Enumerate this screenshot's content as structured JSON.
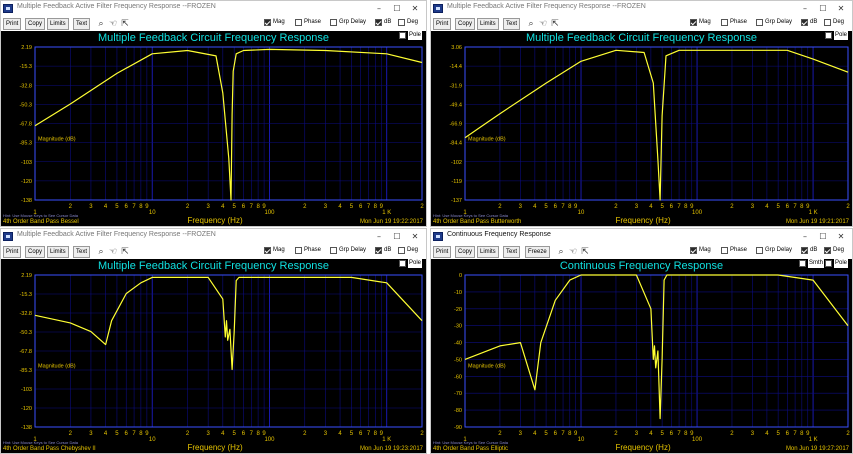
{
  "colors": {
    "accent": "#00e5e5",
    "trace": "#ffff33",
    "grid": "#10108f",
    "frame": "#3a50ff",
    "footer_text": "#e6c400",
    "background": "#000000"
  },
  "windows": [
    {
      "title": "Multiple Feedback Active Filter Frequency Response --FROZEN",
      "plot_title": "Multiple Feedback Circuit Frequency Response",
      "toolbar": [
        "Print",
        "Copy",
        "Limits",
        "Text"
      ],
      "footer_left": "4th Order Band Pass Bessel",
      "footer_right": "Mon Jun 19 19:22:2017",
      "footer_hint": "Hint: Use Mouse Keys to See Cursor Data",
      "y_ticks": [
        "2.19",
        "-15.3",
        "-32.8",
        "-50.3",
        "-67.8",
        "-85.3",
        "-103",
        "-120",
        "-138"
      ],
      "checks": [
        {
          "label": "Mag",
          "on": true
        },
        {
          "label": "Phase",
          "on": false
        },
        {
          "label": "Grp Delay",
          "on": false
        },
        {
          "label": "dB",
          "on": true
        },
        {
          "label": "Deg",
          "on": false
        },
        {
          "label": "Pole",
          "on": false
        }
      ]
    },
    {
      "title": "Multiple Feedback Active Filter Frequency Response --FROZEN",
      "plot_title": "Multiple Feedback Circuit Frequency Response",
      "toolbar": [
        "Print",
        "Copy",
        "Limits",
        "Text"
      ],
      "footer_left": "4th Order Band Pass Butterworth",
      "footer_right": "Mon Jun 19 19:21:2017",
      "footer_hint": "Hint: Use Mouse Keys to See Cursor Data",
      "y_ticks": [
        "3.06",
        "-14.4",
        "-31.9",
        "-49.4",
        "-66.9",
        "-84.4",
        "-102",
        "-119",
        "-137"
      ],
      "checks": [
        {
          "label": "Mag",
          "on": true
        },
        {
          "label": "Phase",
          "on": false
        },
        {
          "label": "Grp Delay",
          "on": false
        },
        {
          "label": "dB",
          "on": true
        },
        {
          "label": "Deg",
          "on": false
        },
        {
          "label": "Pole",
          "on": false
        }
      ]
    },
    {
      "title": "Multiple Feedback Active Filter Frequency Response --FROZEN",
      "plot_title": "Multiple Feedback Circuit Frequency Response",
      "toolbar": [
        "Print",
        "Copy",
        "Limits",
        "Text"
      ],
      "footer_left": "4th Order Band Pass Chebyshev II",
      "footer_right": "Mon Jun 19 19:23:2017",
      "footer_hint": "Hint: Use Mouse Keys to See Cursor Data",
      "y_ticks": [
        "2.19",
        "-15.3",
        "-32.8",
        "-50.3",
        "-67.8",
        "-85.3",
        "-103",
        "-120",
        "-138"
      ],
      "checks": [
        {
          "label": "Mag",
          "on": true
        },
        {
          "label": "Phase",
          "on": false
        },
        {
          "label": "Grp Delay",
          "on": false
        },
        {
          "label": "dB",
          "on": true
        },
        {
          "label": "Deg",
          "on": false
        },
        {
          "label": "Pole",
          "on": false
        }
      ]
    },
    {
      "title": "Continuous Frequency Response",
      "plot_title": "Continuous Frequency Response",
      "toolbar": [
        "Print",
        "Copy",
        "Limits",
        "Text",
        "Freeze"
      ],
      "footer_left": "4th Order Band Pass Elliptic",
      "footer_right": "Mon Jun 19 19:27:2017",
      "footer_hint": "Hint: Use Mouse Keys to See Cursor Data",
      "y_ticks": [
        "0",
        "-10",
        "-20",
        "-30",
        "-40",
        "-50",
        "-60",
        "-70",
        "-80",
        "-90"
      ],
      "checks": [
        {
          "label": "Mag",
          "on": true
        },
        {
          "label": "Phase",
          "on": false
        },
        {
          "label": "Grp Delay",
          "on": false
        },
        {
          "label": "dB",
          "on": true
        },
        {
          "label": "Deg",
          "on": true
        },
        {
          "label": "Smth",
          "on": false
        },
        {
          "label": "Pole",
          "on": false
        }
      ]
    }
  ],
  "common": {
    "xlabel": "Frequency (Hz)",
    "series_label": "Magnitude (dB)",
    "decade_labels": [
      "1",
      "10",
      "100",
      "1 K"
    ],
    "minor_labels": [
      "2",
      "3",
      "4",
      "5",
      "6",
      "7",
      "8",
      "9"
    ]
  },
  "chart_data": [
    {
      "type": "line",
      "title": "Multiple Feedback Circuit Frequency Response",
      "subtitle": "4th Order Band Pass Bessel",
      "xlabel": "Frequency (Hz)",
      "ylabel": "Magnitude (dB)",
      "xscale": "log",
      "xlim": [
        1,
        2000
      ],
      "ylim": [
        -138,
        2.19
      ],
      "grid": true,
      "series": [
        {
          "name": "Magnitude (dB)",
          "x": [
            1,
            2,
            5,
            10,
            20,
            35,
            40,
            45,
            47,
            48,
            49,
            52,
            60,
            100,
            300,
            1000,
            2000
          ],
          "y": [
            -70,
            -50,
            -22,
            -4,
            -1,
            -6,
            -40,
            -100,
            -138,
            -60,
            -20,
            -4,
            -1,
            0,
            -1,
            -4,
            -12
          ]
        }
      ]
    },
    {
      "type": "line",
      "title": "Multiple Feedback Circuit Frequency Response",
      "subtitle": "4th Order Band Pass Butterworth",
      "xlabel": "Frequency (Hz)",
      "ylabel": "Magnitude (dB)",
      "xscale": "log",
      "xlim": [
        1,
        2000
      ],
      "ylim": [
        -137,
        3.06
      ],
      "grid": true,
      "series": [
        {
          "name": "Magnitude (dB)",
          "x": [
            1,
            2,
            5,
            10,
            20,
            35,
            42,
            46,
            48,
            50,
            54,
            70,
            200,
            600,
            1000,
            2000
          ],
          "y": [
            -80,
            -58,
            -30,
            -10,
            0,
            -2,
            -30,
            -100,
            -137,
            -60,
            -5,
            0,
            0,
            0,
            -8,
            -20
          ]
        }
      ]
    },
    {
      "type": "line",
      "title": "Multiple Feedback Circuit Frequency Response",
      "subtitle": "4th Order Band Pass Chebyshev II",
      "xlabel": "Frequency (Hz)",
      "ylabel": "Magnitude (dB)",
      "xscale": "log",
      "xlim": [
        1,
        2000
      ],
      "ylim": [
        -138,
        2.19
      ],
      "grid": true,
      "series": [
        {
          "name": "Magnitude (dB)",
          "x": [
            1,
            2,
            3,
            4,
            4.5,
            6,
            8,
            10,
            30,
            40,
            42,
            43,
            44,
            46,
            48,
            50,
            52,
            55,
            100,
            500,
            1000,
            2000
          ],
          "y": [
            -35,
            -42,
            -50,
            -62,
            -40,
            -15,
            -5,
            0,
            0,
            -20,
            -55,
            -40,
            -58,
            -48,
            -85,
            -50,
            -3,
            0,
            0,
            0,
            -5,
            -40
          ]
        }
      ]
    },
    {
      "type": "line",
      "title": "Continuous Frequency Response",
      "subtitle": "4th Order Band Pass Elliptic",
      "xlabel": "Frequency (Hz)",
      "ylabel": "Magnitude (dB)",
      "xscale": "log",
      "xlim": [
        1,
        2000
      ],
      "ylim": [
        -90,
        0
      ],
      "grid": true,
      "series": [
        {
          "name": "Magnitude (dB)",
          "x": [
            1,
            2,
            3,
            4,
            4.5,
            6,
            8,
            10,
            30,
            40,
            42,
            43,
            44,
            46,
            48,
            50,
            52,
            55,
            100,
            500,
            1000,
            2000
          ],
          "y": [
            -50,
            -42,
            -40,
            -68,
            -40,
            -15,
            -3,
            0,
            0,
            -20,
            -50,
            -42,
            -55,
            -45,
            -85,
            -50,
            -3,
            0,
            0,
            0,
            -3,
            -30
          ]
        }
      ]
    }
  ]
}
